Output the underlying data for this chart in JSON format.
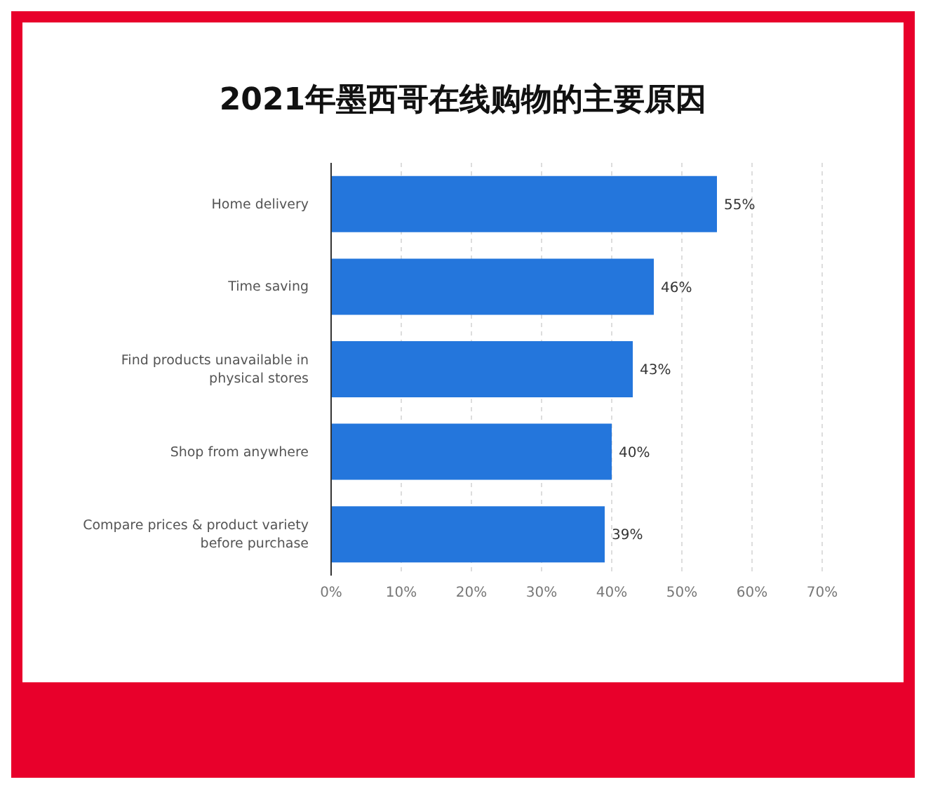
{
  "chart_data": {
    "type": "bar",
    "orientation": "horizontal",
    "title": "2021年墨西哥在线购物的主要原因",
    "categories": [
      "Home delivery",
      "Time saving",
      "Find products unavailable in physical stores",
      "Shop from anywhere",
      "Compare prices & product variety before purchase"
    ],
    "values": [
      55,
      46,
      43,
      40,
      39
    ],
    "color": "#2476dc",
    "value_labels": [
      "55%",
      "46%",
      "43%",
      "40%",
      "39%"
    ],
    "xlim": [
      0,
      70
    ],
    "xticks": [
      {
        "value": 0,
        "label": "0%"
      },
      {
        "value": 10,
        "label": "10%"
      },
      {
        "value": 20,
        "label": "20%"
      },
      {
        "value": 30,
        "label": "30%"
      },
      {
        "value": 40,
        "label": "40%"
      },
      {
        "value": 50,
        "label": "50%"
      },
      {
        "value": 60,
        "label": "60%"
      },
      {
        "value": 70,
        "label": "70%"
      }
    ],
    "grid": "x",
    "legend": false
  }
}
